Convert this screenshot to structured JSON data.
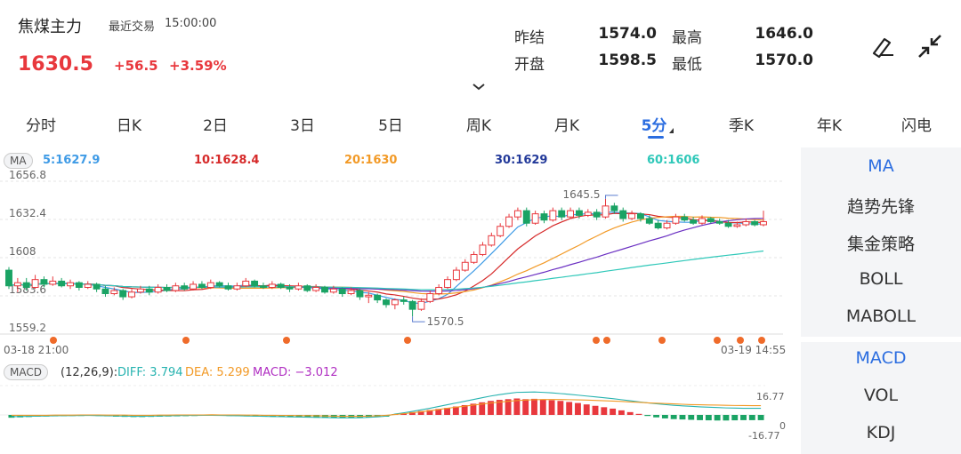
{
  "header": {
    "title": "焦煤主力",
    "latest_label": "最近交易",
    "latest_time": "15:00:00",
    "price": "1630.5",
    "change": "+56.5",
    "change_pct": "+3.59%"
  },
  "info": {
    "prev_settle_label": "昨结",
    "prev_settle": "1574.0",
    "high_label": "最高",
    "high": "1646.0",
    "open_label": "开盘",
    "open": "1598.5",
    "low_label": "最低",
    "low": "1570.0"
  },
  "tabs": [
    "分时",
    "日K",
    "2日",
    "3日",
    "5日",
    "周K",
    "月K",
    "5分",
    "季K",
    "年K",
    "闪电"
  ],
  "active_tab": "5分",
  "ma_legend": {
    "badge": "MA",
    "ma5": "5:1627.9",
    "ma10": "10:1628.4",
    "ma20": "20:1630",
    "ma30": "30:1629",
    "ma60": "60:1606"
  },
  "macd_legend": {
    "badge": "MACD",
    "params": "(12,26,9):",
    "diff": "DIFF: 3.794",
    "dea": "DEA: 5.299",
    "macd": "MACD: −3.012"
  },
  "side_menu": [
    "MA",
    "趋势先锋",
    "集金策略",
    "BOLL",
    "MABOLL",
    "MACD",
    "VOL",
    "KDJ"
  ],
  "colors": {
    "up": "#e8383d",
    "down": "#1aa364",
    "ma5": "#3f9be6",
    "ma10": "#d62a2a",
    "ma20": "#f29a27",
    "ma30": "#6a2fc2",
    "ma60": "#2fc8b9",
    "accent": "#2b6de0"
  },
  "chart_data": [
    {
      "type": "candlestick",
      "y_ticks": [
        "1656.8",
        "1632.4",
        "1608",
        "1583.6",
        "1559.2"
      ],
      "ylim": [
        1559.2,
        1656.8
      ],
      "x_start_label": "03-18 21:00",
      "x_end_label": "03-19 14:55",
      "high_marker": "1645.5",
      "low_marker": "1570.5",
      "candles": [
        [
          1600,
          1590,
          1602,
          1588
        ],
        [
          1590,
          1592,
          1595,
          1586
        ],
        [
          1592,
          1589,
          1595,
          1587
        ],
        [
          1589,
          1594,
          1597,
          1588
        ],
        [
          1594,
          1591,
          1596,
          1589
        ],
        [
          1591,
          1593,
          1596,
          1590
        ],
        [
          1593,
          1590,
          1595,
          1589
        ],
        [
          1590,
          1592,
          1594,
          1588
        ],
        [
          1592,
          1589,
          1593,
          1587
        ],
        [
          1589,
          1591,
          1593,
          1588
        ],
        [
          1591,
          1588,
          1592,
          1586
        ],
        [
          1588,
          1585,
          1590,
          1583
        ],
        [
          1585,
          1587,
          1589,
          1584
        ],
        [
          1587,
          1583,
          1588,
          1581
        ],
        [
          1583,
          1586,
          1588,
          1582
        ],
        [
          1586,
          1588,
          1590,
          1585
        ],
        [
          1588,
          1586,
          1590,
          1584
        ],
        [
          1586,
          1589,
          1591,
          1585
        ],
        [
          1589,
          1587,
          1591,
          1586
        ],
        [
          1587,
          1590,
          1592,
          1586
        ],
        [
          1590,
          1588,
          1592,
          1587
        ],
        [
          1588,
          1591,
          1593,
          1587
        ],
        [
          1591,
          1589,
          1593,
          1588
        ],
        [
          1589,
          1592,
          1594,
          1588
        ],
        [
          1592,
          1590,
          1593,
          1589
        ],
        [
          1590,
          1588,
          1592,
          1587
        ],
        [
          1588,
          1590,
          1592,
          1587
        ],
        [
          1590,
          1593,
          1595,
          1589
        ],
        [
          1593,
          1590,
          1594,
          1589
        ],
        [
          1590,
          1589,
          1592,
          1588
        ],
        [
          1589,
          1591,
          1593,
          1588
        ],
        [
          1591,
          1589,
          1592,
          1588
        ],
        [
          1589,
          1588,
          1591,
          1586
        ],
        [
          1588,
          1590,
          1592,
          1587
        ],
        [
          1590,
          1587,
          1591,
          1586
        ],
        [
          1587,
          1589,
          1591,
          1586
        ],
        [
          1589,
          1586,
          1590,
          1585
        ],
        [
          1586,
          1588,
          1590,
          1585
        ],
        [
          1588,
          1585,
          1589,
          1583
        ],
        [
          1585,
          1587,
          1589,
          1584
        ],
        [
          1587,
          1583,
          1588,
          1581
        ],
        [
          1583,
          1584,
          1586,
          1579
        ],
        [
          1584,
          1581,
          1585,
          1579
        ],
        [
          1581,
          1578,
          1582,
          1576
        ],
        [
          1578,
          1581,
          1582,
          1575
        ],
        [
          1581,
          1580,
          1583,
          1578
        ],
        [
          1580,
          1575,
          1581,
          1570.5
        ],
        [
          1575,
          1580,
          1582,
          1574
        ],
        [
          1580,
          1585,
          1587,
          1579
        ],
        [
          1585,
          1589,
          1591,
          1584
        ],
        [
          1589,
          1594,
          1596,
          1588
        ],
        [
          1594,
          1600,
          1602,
          1593
        ],
        [
          1600,
          1605,
          1607,
          1599
        ],
        [
          1605,
          1610,
          1612,
          1604
        ],
        [
          1610,
          1616,
          1618,
          1609
        ],
        [
          1616,
          1622,
          1624,
          1615
        ],
        [
          1622,
          1628,
          1630,
          1621
        ],
        [
          1628,
          1634,
          1636,
          1627
        ],
        [
          1634,
          1638,
          1640,
          1632
        ],
        [
          1638,
          1630,
          1640,
          1628
        ],
        [
          1630,
          1636,
          1638,
          1629
        ],
        [
          1636,
          1632,
          1638,
          1630
        ],
        [
          1632,
          1638,
          1640,
          1631
        ],
        [
          1638,
          1634,
          1640,
          1632
        ],
        [
          1634,
          1638,
          1640,
          1633
        ],
        [
          1638,
          1635,
          1640,
          1633
        ],
        [
          1635,
          1637,
          1639,
          1634
        ],
        [
          1637,
          1634,
          1639,
          1632
        ],
        [
          1634,
          1641,
          1645.5,
          1633
        ],
        [
          1641,
          1638,
          1643,
          1636
        ],
        [
          1638,
          1633,
          1640,
          1631
        ],
        [
          1633,
          1636,
          1638,
          1632
        ],
        [
          1636,
          1633,
          1637,
          1631
        ],
        [
          1633,
          1630,
          1635,
          1629
        ],
        [
          1630,
          1627,
          1632,
          1626
        ],
        [
          1627,
          1630,
          1632,
          1626
        ],
        [
          1630,
          1634,
          1636,
          1629
        ],
        [
          1634,
          1632,
          1636,
          1631
        ],
        [
          1632,
          1630,
          1634,
          1629
        ],
        [
          1630,
          1633,
          1635,
          1629
        ],
        [
          1633,
          1631,
          1634,
          1630
        ],
        [
          1631,
          1630,
          1633,
          1629
        ],
        [
          1630,
          1628,
          1632,
          1627
        ],
        [
          1628,
          1629,
          1631,
          1627
        ],
        [
          1629,
          1631,
          1633,
          1628
        ],
        [
          1631,
          1629,
          1632,
          1628
        ],
        [
          1629,
          1631,
          1638,
          1628
        ]
      ]
    },
    {
      "type": "bar",
      "title": "MACD",
      "y_ticks": [
        "16.77",
        "0",
        "-16.77"
      ],
      "ylim": [
        -16.77,
        16.77
      ],
      "series": [
        {
          "name": "MACD",
          "values": [
            -1.6,
            -1.4,
            -1.2,
            -1.0,
            -0.9,
            -0.8,
            -0.7,
            -0.6,
            -0.6,
            -0.5,
            -0.6,
            -0.8,
            -1.0,
            -1.1,
            -1.2,
            -1.2,
            -1.1,
            -1.0,
            -0.9,
            -0.8,
            -0.7,
            -0.6,
            -0.5,
            -0.5,
            -0.5,
            -0.6,
            -0.7,
            -0.8,
            -0.9,
            -1.0,
            -1.1,
            -1.2,
            -1.3,
            -1.4,
            -1.5,
            -1.6,
            -1.7,
            -1.8,
            -1.8,
            -1.7,
            -1.6,
            -1.4,
            -1.2,
            -1.0,
            0.5,
            1.0,
            1.6,
            2.2,
            2.8,
            3.4,
            4.0,
            4.8,
            5.6,
            6.4,
            7.2,
            8.0,
            8.6,
            9.0,
            9.4,
            9.0,
            9.2,
            8.8,
            8.4,
            8.0,
            7.4,
            6.8,
            6.0,
            5.2,
            4.4,
            3.6,
            2.6,
            1.6,
            0.6,
            -0.6,
            -1.4,
            -2.0,
            -2.4,
            -2.6,
            -2.8,
            -3.0,
            -3.1,
            -3.2,
            -3.2,
            -3.1,
            -3.0,
            -3.0,
            -3.012
          ]
        },
        {
          "name": "DIFF",
          "values": [
            -1.0,
            -0.9,
            -0.8,
            -0.7,
            -0.6,
            -0.5,
            -0.4,
            -0.4,
            -0.3,
            -0.3,
            -0.4,
            -0.5,
            -0.6,
            -0.7,
            -0.8,
            -0.8,
            -0.7,
            -0.6,
            -0.5,
            -0.4,
            -0.3,
            -0.3,
            -0.2,
            -0.2,
            -0.3,
            -0.4,
            -0.5,
            -0.6,
            -0.7,
            -0.8,
            -0.9,
            -1.0,
            -1.1,
            -1.2,
            -1.3,
            -1.4,
            -1.5,
            -1.6,
            -1.7,
            -1.7,
            -1.6,
            -1.4,
            -1.1,
            -0.7,
            0.5,
            1.2,
            2.0,
            2.9,
            3.8,
            4.8,
            5.8,
            6.8,
            7.8,
            8.8,
            9.8,
            10.8,
            11.6,
            12.3,
            12.9,
            13.0,
            13.1,
            12.9,
            12.6,
            12.2,
            11.8,
            11.3,
            10.8,
            10.3,
            9.8,
            9.3,
            8.7,
            8.1,
            7.5,
            6.9,
            6.4,
            5.9,
            5.5,
            5.2,
            4.9,
            4.6,
            4.4,
            4.2,
            4.0,
            3.9,
            3.8,
            3.8,
            3.794
          ]
        },
        {
          "name": "DEA",
          "values": [
            -0.2,
            -0.2,
            -0.2,
            -0.2,
            -0.2,
            -0.1,
            -0.1,
            -0.1,
            0.0,
            0.0,
            0.0,
            -0.1,
            -0.1,
            -0.1,
            -0.2,
            -0.2,
            -0.2,
            -0.1,
            -0.1,
            0.0,
            0.0,
            0.0,
            0.0,
            0.1,
            0.0,
            0.0,
            0.0,
            -0.1,
            -0.1,
            -0.2,
            -0.2,
            -0.3,
            -0.3,
            -0.4,
            -0.4,
            -0.5,
            -0.6,
            -0.7,
            -0.8,
            -0.8,
            -0.8,
            -0.7,
            -0.5,
            -0.2,
            0.2,
            0.7,
            1.2,
            1.8,
            2.4,
            3.1,
            3.8,
            4.4,
            5.0,
            5.6,
            6.2,
            6.8,
            7.3,
            7.8,
            8.2,
            8.5,
            8.7,
            8.8,
            8.8,
            8.8,
            8.7,
            8.6,
            8.5,
            8.3,
            8.1,
            7.9,
            7.7,
            7.4,
            7.2,
            6.9,
            6.7,
            6.5,
            6.3,
            6.1,
            5.9,
            5.8,
            5.7,
            5.6,
            5.5,
            5.4,
            5.35,
            5.3,
            5.299
          ]
        }
      ]
    }
  ]
}
